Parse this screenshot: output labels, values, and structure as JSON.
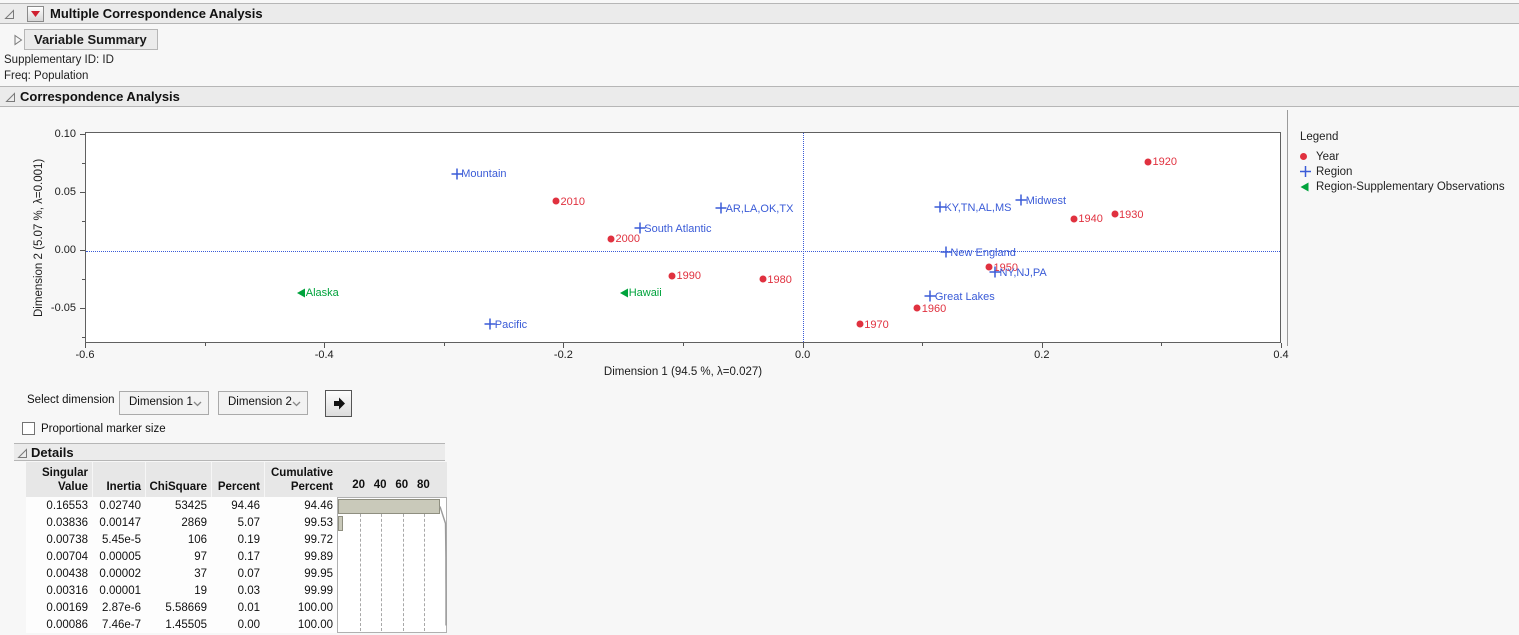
{
  "colors": {
    "year_red": "#e0313f",
    "region_blue": "#3a5bd7",
    "supplementary_green": "#00a33c",
    "red_triangle_btn": "#cf2030",
    "bar_fill": "#c9c9ba",
    "bar_border": "#8f8f80"
  },
  "outline1": {
    "title": "Multiple Correspondence Analysis"
  },
  "variable_summary": {
    "title": "Variable Summary"
  },
  "info": {
    "supplementary_id": "Supplementary ID: ID",
    "freq": "Freq: Population"
  },
  "outline2": {
    "title": "Correspondence Analysis"
  },
  "chart_data": {
    "type": "scatter",
    "xlabel": "Dimension 1  (94.5 %, λ=0.027)",
    "ylabel": "Dimension 2  (5.07 %, λ=0.001)",
    "xlim": [
      -0.6,
      0.4
    ],
    "ylim": [
      -0.08,
      0.102
    ],
    "x_major_ticks": [
      -0.6,
      -0.4,
      -0.2,
      0.0,
      0.2,
      0.4
    ],
    "x_major_tick_labels": [
      "-0.6",
      "-0.4",
      "-0.2",
      "0.0",
      "0.2",
      "0.4"
    ],
    "x_minor_ticks": [
      -0.5,
      -0.3,
      -0.1,
      0.1,
      0.3
    ],
    "y_major_ticks": [
      0.1,
      0.05,
      0.0,
      -0.05
    ],
    "y_major_tick_labels": [
      "0.10",
      "0.05",
      "0.00",
      "-0.05"
    ],
    "y_minor_ticks": [
      0.075,
      0.025,
      -0.025,
      -0.075
    ],
    "reference_lines": {
      "x": 0.0,
      "y": 0.0
    },
    "grid": false,
    "legend_position": "right",
    "series": [
      {
        "name": "Year",
        "marker": "dot",
        "color": "#e0313f",
        "points": [
          {
            "label": "1920",
            "x": 0.288,
            "y": 0.077
          },
          {
            "label": "1930",
            "x": 0.26,
            "y": 0.032
          },
          {
            "label": "1940",
            "x": 0.226,
            "y": 0.028
          },
          {
            "label": "1950",
            "x": 0.155,
            "y": -0.014
          },
          {
            "label": "1960",
            "x": 0.095,
            "y": -0.049
          },
          {
            "label": "1970",
            "x": 0.047,
            "y": -0.063
          },
          {
            "label": "1980",
            "x": -0.034,
            "y": -0.024
          },
          {
            "label": "1990",
            "x": -0.11,
            "y": -0.021
          },
          {
            "label": "2000",
            "x": -0.161,
            "y": 0.011
          },
          {
            "label": "2010",
            "x": -0.207,
            "y": 0.043
          }
        ]
      },
      {
        "name": "Region",
        "marker": "plus",
        "color": "#3a5bd7",
        "points": [
          {
            "label": "Mountain",
            "x": -0.29,
            "y": 0.067
          },
          {
            "label": "AR,LA,OK,TX",
            "x": -0.069,
            "y": 0.037
          },
          {
            "label": "South Atlantic",
            "x": -0.137,
            "y": 0.02
          },
          {
            "label": "Pacific",
            "x": -0.262,
            "y": -0.063
          },
          {
            "label": "KY,TN,AL,MS",
            "x": 0.114,
            "y": 0.038
          },
          {
            "label": "Midwest",
            "x": 0.182,
            "y": 0.044
          },
          {
            "label": "New England",
            "x": 0.119,
            "y": -0.001
          },
          {
            "label": "NY,NJ,PA",
            "x": 0.16,
            "y": -0.018
          },
          {
            "label": "Great Lakes",
            "x": 0.106,
            "y": -0.039
          }
        ]
      },
      {
        "name": "Region-Supplementary Observations",
        "marker": "triangle-left",
        "color": "#00a33c",
        "points": [
          {
            "label": "Alaska",
            "x": -0.42,
            "y": -0.036
          },
          {
            "label": "Hawaii",
            "x": -0.15,
            "y": -0.036
          }
        ]
      }
    ],
    "legend": {
      "title": "Legend",
      "entries": [
        {
          "label": "Year",
          "marker": "dot",
          "color": "#e0313f"
        },
        {
          "label": "Region",
          "marker": "plus",
          "color": "#3a5bd7"
        },
        {
          "label": "Region-Supplementary Observations",
          "marker": "triangle-left",
          "color": "#00a33c"
        }
      ]
    }
  },
  "controls": {
    "select_dimension_label": "Select dimension",
    "dimension1_value": "Dimension 1",
    "dimension2_value": "Dimension 2",
    "proportional_label": "Proportional marker size",
    "proportional_checked": false
  },
  "details": {
    "title": "Details",
    "column_headers": [
      "Singular\nValue",
      "Inertia",
      "ChiSquare",
      "Percent",
      "Cumulative\nPercent"
    ],
    "bar_axis_labels": [
      "20",
      "40",
      "60",
      "80"
    ],
    "rows": [
      {
        "cells": [
          "0.16553",
          "0.02740",
          "53425",
          "94.46",
          "94.46"
        ],
        "percent": 94.46,
        "cumulative": 94.46
      },
      {
        "cells": [
          "0.03836",
          "0.00147",
          "2869",
          "5.07",
          "99.53"
        ],
        "percent": 5.07,
        "cumulative": 99.53
      },
      {
        "cells": [
          "0.00738",
          "5.45e-5",
          "106",
          "0.19",
          "99.72"
        ],
        "percent": 0.19,
        "cumulative": 99.72
      },
      {
        "cells": [
          "0.00704",
          "0.00005",
          "97",
          "0.17",
          "99.89"
        ],
        "percent": 0.17,
        "cumulative": 99.89
      },
      {
        "cells": [
          "0.00438",
          "0.00002",
          "37",
          "0.07",
          "99.95"
        ],
        "percent": 0.07,
        "cumulative": 99.95
      },
      {
        "cells": [
          "0.00316",
          "0.00001",
          "19",
          "0.03",
          "99.99"
        ],
        "percent": 0.03,
        "cumulative": 99.99
      },
      {
        "cells": [
          "0.00169",
          "2.87e-6",
          "5.58669",
          "0.01",
          "100.00"
        ],
        "percent": 0.01,
        "cumulative": 100.0
      },
      {
        "cells": [
          "0.00086",
          "7.46e-7",
          "1.45505",
          "0.00",
          "100.00"
        ],
        "percent": 0.0,
        "cumulative": 100.0
      }
    ]
  }
}
